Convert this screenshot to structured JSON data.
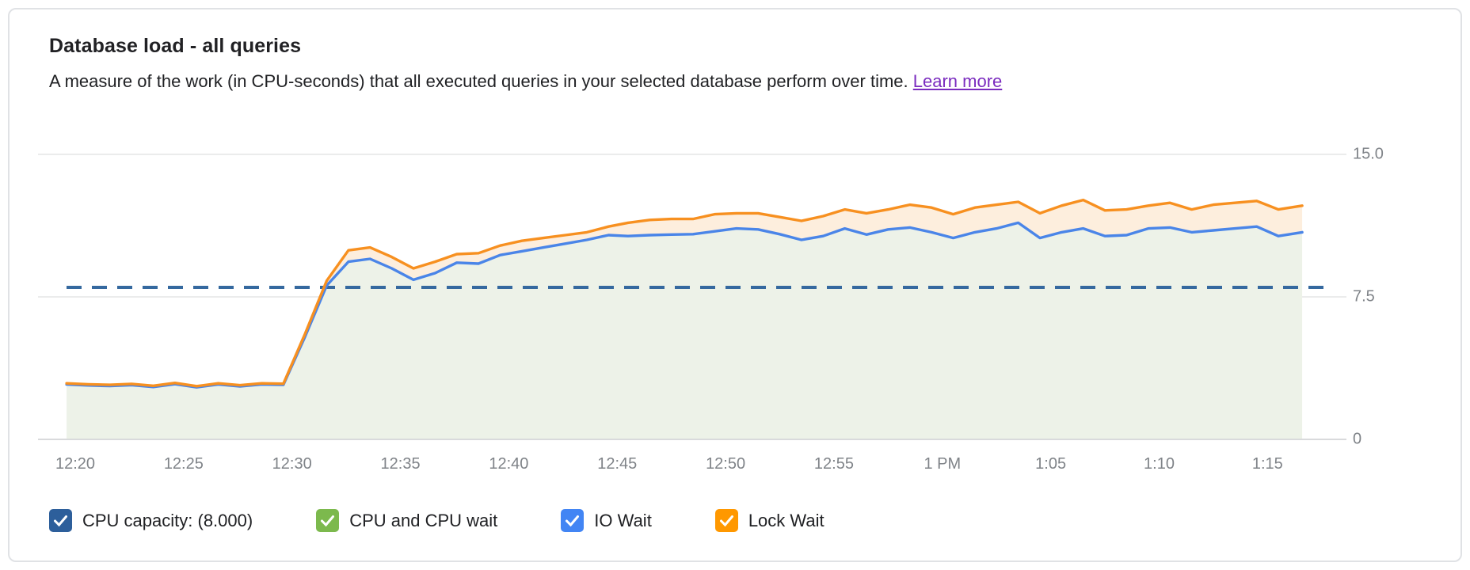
{
  "card": {
    "title": "Database load - all queries",
    "subtitle": "A measure of the work (in CPU-seconds) that all executed queries in your selected database perform over time.",
    "learn_more_label": "Learn more"
  },
  "chart_data": {
    "type": "area",
    "title": "Database load - all queries",
    "grid": "horizontal",
    "stacking": "series values are cumulative stack tops (line positions), units = CPU-seconds of load",
    "y_axis": {
      "position": "right",
      "range": [
        0,
        15
      ],
      "ticks": [
        0,
        7.5,
        15.0
      ],
      "tick_labels": [
        "0",
        "7.5",
        "15.0"
      ]
    },
    "x_axis": {
      "unit": "time of day",
      "tick_labels": [
        "12:20",
        "12:25",
        "12:30",
        "12:35",
        "12:40",
        "12:45",
        "12:50",
        "12:55",
        "1 PM",
        "1:05",
        "1:10",
        "1:15"
      ],
      "tick_minutes_after_12_20": [
        0,
        5,
        10,
        15,
        20,
        25,
        30,
        35,
        40,
        45,
        50,
        55
      ]
    },
    "capacity_line": {
      "label": "CPU capacity: (8.000)",
      "value": 8.0,
      "style": "dashed",
      "color": "#35699f"
    },
    "sample_minutes_after_12_20": [
      -0.4,
      0.6,
      1.6,
      2.6,
      3.6,
      4.6,
      5.6,
      6.6,
      7.6,
      8.6,
      9.6,
      10.6,
      11.6,
      12.6,
      13.6,
      14.6,
      15.6,
      16.6,
      17.6,
      18.6,
      19.6,
      20.6,
      21.6,
      22.6,
      23.6,
      24.6,
      25.5,
      26.5,
      27.5,
      28.5,
      29.5,
      30.5,
      31.5,
      32.5,
      33.5,
      34.5,
      35.5,
      36.5,
      37.5,
      38.5,
      39.5,
      40.5,
      41.5,
      42.5,
      43.5,
      44.5,
      45.5,
      46.5,
      47.5,
      48.5,
      49.5,
      50.5,
      51.5,
      52.5,
      53.5,
      54.5,
      55.5,
      56.6
    ],
    "series": [
      {
        "name": "IO Wait",
        "role": "blue line = top of CPU + CPU wait + IO Wait stack",
        "color": "#4a85e8",
        "fill": "#edf2e8",
        "values": [
          2.89,
          2.84,
          2.81,
          2.86,
          2.76,
          2.91,
          2.74,
          2.89,
          2.79,
          2.89,
          2.87,
          5.4,
          8.1,
          9.35,
          9.5,
          9.0,
          8.4,
          8.75,
          9.3,
          9.25,
          9.7,
          9.9,
          10.1,
          10.3,
          10.5,
          10.75,
          10.7,
          10.75,
          10.78,
          10.8,
          10.95,
          11.1,
          11.05,
          10.8,
          10.5,
          10.7,
          11.1,
          10.78,
          11.05,
          11.15,
          10.9,
          10.6,
          10.9,
          11.1,
          11.4,
          10.6,
          10.9,
          11.1,
          10.7,
          10.75,
          11.1,
          11.15,
          10.9,
          11.0,
          11.1,
          11.2,
          10.7,
          10.9
        ]
      },
      {
        "name": "Lock Wait",
        "role": "orange line = top of total stack including Lock Wait",
        "color": "#f79020",
        "fill": "#fdeedd",
        "values": [
          2.95,
          2.9,
          2.87,
          2.92,
          2.82,
          2.97,
          2.8,
          2.95,
          2.85,
          2.95,
          2.93,
          5.55,
          8.35,
          9.95,
          10.1,
          9.6,
          9.0,
          9.35,
          9.75,
          9.8,
          10.2,
          10.45,
          10.6,
          10.75,
          10.9,
          11.2,
          11.4,
          11.55,
          11.6,
          11.6,
          11.85,
          11.9,
          11.9,
          11.7,
          11.5,
          11.75,
          12.1,
          11.9,
          12.1,
          12.35,
          12.2,
          11.85,
          12.2,
          12.35,
          12.5,
          11.9,
          12.3,
          12.6,
          12.05,
          12.1,
          12.3,
          12.45,
          12.1,
          12.35,
          12.45,
          12.55,
          12.1,
          12.3
        ]
      }
    ],
    "legend": [
      {
        "label": "CPU capacity: (8.000)",
        "color": "#2d5f9b",
        "checked": true
      },
      {
        "label": "CPU and CPU wait",
        "color": "#7cb94d",
        "checked": true
      },
      {
        "label": "IO Wait",
        "color": "#4285f4",
        "checked": true
      },
      {
        "label": "Lock Wait",
        "color": "#ff9800",
        "checked": true
      }
    ]
  },
  "colors": {
    "link": "#7b2cbf",
    "axis_text": "#7f8388",
    "grid_line": "#ebecec",
    "baseline": "#d9dadc",
    "title_text": "#212124"
  }
}
